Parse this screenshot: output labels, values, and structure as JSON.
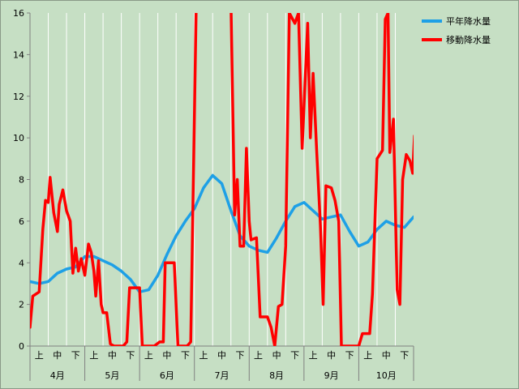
{
  "chart_data": {
    "type": "line",
    "title": "",
    "xlabel": "",
    "ylabel": "",
    "ylim": [
      0,
      16
    ],
    "yticks": [
      0,
      2,
      4,
      6,
      8,
      10,
      12,
      14,
      16
    ],
    "x_periods": [
      "上",
      "中",
      "下",
      "上",
      "中",
      "下",
      "上",
      "中",
      "下",
      "上",
      "中",
      "下",
      "上",
      "中",
      "下",
      "上",
      "中",
      "下",
      "上",
      "中",
      "下"
    ],
    "x_months": [
      "4月",
      "5月",
      "6月",
      "7月",
      "8月",
      "9月",
      "10月"
    ],
    "legend_position": "top-right",
    "grid": "vertical",
    "series": [
      {
        "name": "平年降水量",
        "color": "#1ea0e6",
        "points": [
          [
            0,
            3.1
          ],
          [
            0.5,
            3.0
          ],
          [
            1.0,
            3.1
          ],
          [
            1.5,
            3.5
          ],
          [
            2.0,
            3.7
          ],
          [
            2.5,
            3.8
          ],
          [
            3.0,
            4.3
          ],
          [
            3.5,
            4.3
          ],
          [
            4.0,
            4.1
          ],
          [
            4.5,
            3.9
          ],
          [
            5.0,
            3.6
          ],
          [
            5.5,
            3.2
          ],
          [
            6.0,
            2.6
          ],
          [
            6.5,
            2.7
          ],
          [
            7.0,
            3.4
          ],
          [
            7.5,
            4.4
          ],
          [
            8.0,
            5.3
          ],
          [
            8.5,
            6.0
          ],
          [
            9.0,
            6.6
          ],
          [
            9.5,
            7.6
          ],
          [
            10.0,
            8.2
          ],
          [
            10.5,
            7.8
          ],
          [
            11.0,
            6.5
          ],
          [
            11.5,
            5.3
          ],
          [
            12.0,
            4.8
          ],
          [
            12.5,
            4.6
          ],
          [
            13.0,
            4.5
          ],
          [
            13.5,
            5.2
          ],
          [
            14.0,
            6.0
          ],
          [
            14.5,
            6.7
          ],
          [
            15.0,
            6.9
          ],
          [
            15.5,
            6.5
          ],
          [
            16.0,
            6.1
          ],
          [
            16.5,
            6.2
          ],
          [
            17.0,
            6.3
          ],
          [
            17.5,
            5.5
          ],
          [
            18.0,
            4.8
          ],
          [
            18.5,
            5.0
          ],
          [
            19.0,
            5.6
          ],
          [
            19.5,
            6.0
          ],
          [
            20.0,
            5.8
          ],
          [
            20.5,
            5.7
          ],
          [
            21.0,
            6.2
          ],
          [
            21.5,
            6.5
          ]
        ]
      },
      {
        "name": "移動降水量",
        "color": "#ff0000",
        "points": [
          [
            0,
            0.9
          ],
          [
            0.15,
            2.4
          ],
          [
            0.5,
            2.6
          ],
          [
            0.7,
            5.6
          ],
          [
            0.85,
            7.0
          ],
          [
            1.0,
            6.9
          ],
          [
            1.1,
            8.1
          ],
          [
            1.3,
            6.4
          ],
          [
            1.5,
            5.5
          ],
          [
            1.6,
            6.8
          ],
          [
            1.8,
            7.5
          ],
          [
            2.0,
            6.5
          ],
          [
            2.2,
            6.0
          ],
          [
            2.35,
            3.5
          ],
          [
            2.5,
            4.7
          ],
          [
            2.65,
            3.6
          ],
          [
            2.8,
            4.2
          ],
          [
            3.0,
            3.4
          ],
          [
            3.2,
            4.9
          ],
          [
            3.35,
            4.5
          ],
          [
            3.5,
            3.6
          ],
          [
            3.6,
            2.4
          ],
          [
            3.75,
            4.1
          ],
          [
            3.9,
            2.0
          ],
          [
            4.0,
            1.6
          ],
          [
            4.2,
            1.6
          ],
          [
            4.4,
            0.1
          ],
          [
            4.6,
            0.0
          ],
          [
            5.1,
            0.0
          ],
          [
            5.3,
            0.2
          ],
          [
            5.45,
            2.8
          ],
          [
            6.0,
            2.8
          ],
          [
            6.15,
            0.0
          ],
          [
            6.8,
            0.0
          ],
          [
            7.1,
            0.2
          ],
          [
            7.3,
            0.2
          ],
          [
            7.4,
            4.0
          ],
          [
            7.9,
            4.0
          ],
          [
            8.1,
            0.0
          ],
          [
            8.6,
            0.0
          ],
          [
            8.8,
            0.2
          ],
          [
            9.1,
            16.5
          ],
          [
            11.0,
            16.5
          ],
          [
            11.2,
            6.3
          ],
          [
            11.35,
            8.0
          ],
          [
            11.5,
            4.8
          ],
          [
            11.7,
            4.8
          ],
          [
            11.85,
            9.5
          ],
          [
            12.0,
            6.0
          ],
          [
            12.1,
            5.1
          ],
          [
            12.4,
            5.2
          ],
          [
            12.6,
            1.4
          ],
          [
            13.0,
            1.4
          ],
          [
            13.2,
            0.9
          ],
          [
            13.4,
            0.0
          ],
          [
            13.6,
            1.9
          ],
          [
            13.8,
            2.0
          ],
          [
            14.0,
            4.8
          ],
          [
            14.2,
            16.0
          ],
          [
            14.5,
            15.5
          ],
          [
            14.7,
            16.0
          ],
          [
            14.9,
            9.5
          ],
          [
            15.2,
            15.5
          ],
          [
            15.35,
            10.0
          ],
          [
            15.5,
            13.1
          ],
          [
            15.7,
            9.3
          ],
          [
            15.9,
            5.8
          ],
          [
            16.05,
            2.0
          ],
          [
            16.2,
            7.7
          ],
          [
            16.5,
            7.6
          ],
          [
            16.7,
            7.0
          ],
          [
            16.9,
            6.0
          ],
          [
            17.05,
            0.0
          ],
          [
            18.0,
            0.0
          ],
          [
            18.2,
            0.6
          ],
          [
            18.6,
            0.6
          ],
          [
            18.75,
            2.5
          ],
          [
            19.0,
            9.0
          ],
          [
            19.3,
            9.4
          ],
          [
            19.45,
            15.7
          ],
          [
            19.6,
            16.0
          ],
          [
            19.7,
            9.3
          ],
          [
            19.9,
            10.9
          ],
          [
            20.1,
            2.7
          ],
          [
            20.25,
            2.0
          ],
          [
            20.4,
            8.0
          ],
          [
            20.6,
            9.2
          ],
          [
            20.8,
            8.9
          ],
          [
            20.95,
            8.3
          ],
          [
            21.05,
            10.1
          ]
        ]
      }
    ]
  }
}
